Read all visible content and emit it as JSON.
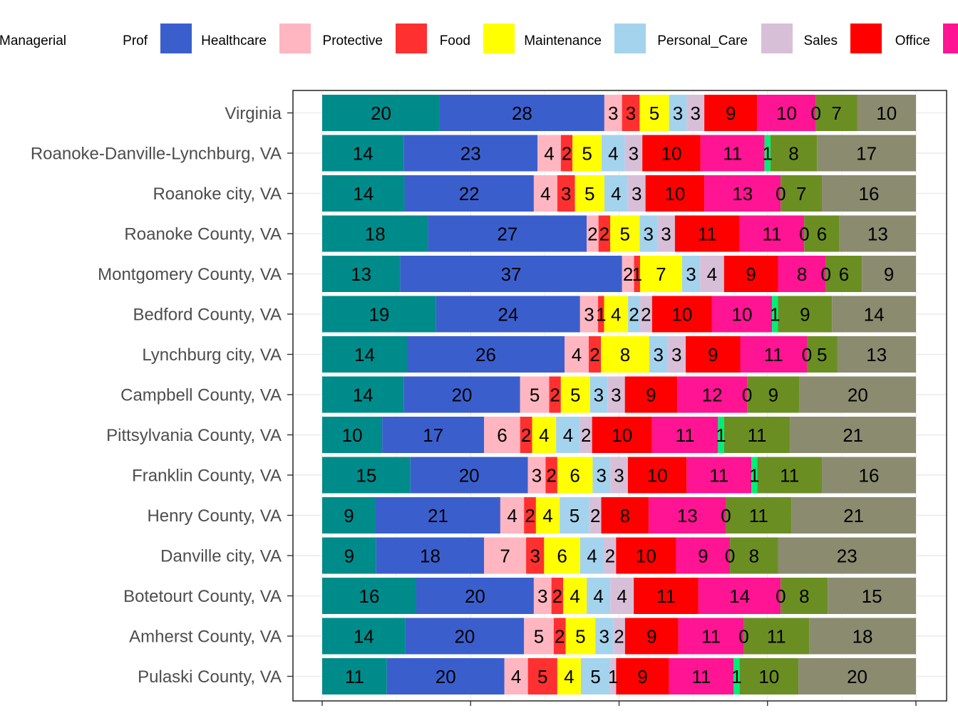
{
  "chart_data": {
    "type": "bar",
    "orientation": "horizontal",
    "stacked": true,
    "normalized": true,
    "grid": true,
    "legend_position": "top",
    "xlabel": "",
    "ylabel": "",
    "categories": [
      "Virginia",
      "Roanoke-Danville-Lynchburg, VA",
      "Roanoke city, VA",
      "Roanoke County, VA",
      "Montgomery County, VA",
      "Bedford County, VA",
      "Lynchburg city, VA",
      "Campbell County, VA",
      "Pittsylvania County, VA",
      "Franklin County, VA",
      "Henry County, VA",
      "Danville city, VA",
      "Botetourt County, VA",
      "Amherst County, VA",
      "Pulaski County, VA"
    ],
    "series": [
      {
        "name": "Managerial",
        "color": "#008B8B",
        "values": [
          20,
          14,
          14,
          18,
          13,
          19,
          14,
          14,
          10,
          15,
          9,
          9,
          16,
          14,
          11
        ]
      },
      {
        "name": "Prof",
        "color": "#3A5FCD",
        "values": [
          28,
          23,
          22,
          27,
          37,
          24,
          26,
          20,
          17,
          20,
          21,
          18,
          20,
          20,
          20
        ]
      },
      {
        "name": "Healthcare",
        "color": "#FFB6C1",
        "values": [
          3,
          4,
          4,
          2,
          2,
          3,
          4,
          5,
          6,
          3,
          4,
          7,
          3,
          5,
          4
        ]
      },
      {
        "name": "Protective",
        "color": "#FF3030",
        "values": [
          3,
          2,
          3,
          2,
          1,
          1,
          2,
          2,
          2,
          2,
          2,
          3,
          2,
          2,
          5
        ]
      },
      {
        "name": "Food",
        "color": "#FFFF00",
        "values": [
          5,
          5,
          5,
          5,
          7,
          4,
          8,
          5,
          4,
          6,
          4,
          6,
          4,
          5,
          4
        ]
      },
      {
        "name": "Maintenance",
        "color": "#A4D3EE",
        "values": [
          3,
          4,
          4,
          3,
          3,
          2,
          3,
          3,
          4,
          3,
          5,
          4,
          4,
          3,
          5
        ]
      },
      {
        "name": "Personal_Care",
        "color": "#D8BFD8",
        "values": [
          3,
          3,
          3,
          3,
          4,
          2,
          3,
          3,
          2,
          3,
          2,
          2,
          4,
          2,
          1
        ]
      },
      {
        "name": "Sales",
        "color": "#FF0000",
        "values": [
          9,
          10,
          10,
          11,
          9,
          10,
          9,
          9,
          10,
          10,
          8,
          10,
          11,
          9,
          9
        ]
      },
      {
        "name": "Office",
        "color": "#FF1493",
        "values": [
          10,
          11,
          13,
          11,
          8,
          10,
          11,
          12,
          11,
          11,
          13,
          9,
          14,
          11,
          11
        ]
      },
      {
        "name": "",
        "color": "#00EE76",
        "values": [
          0,
          1,
          0,
          0,
          0,
          1,
          0,
          0,
          1,
          1,
          0,
          0,
          0,
          0,
          1
        ]
      },
      {
        "name": "",
        "color": "#6B8E23",
        "values": [
          7,
          8,
          7,
          6,
          6,
          9,
          5,
          9,
          11,
          11,
          11,
          8,
          8,
          11,
          10
        ]
      },
      {
        "name": "",
        "color": "#8B8B70",
        "values": [
          10,
          17,
          16,
          13,
          9,
          14,
          13,
          20,
          21,
          16,
          21,
          23,
          15,
          18,
          20
        ]
      }
    ]
  }
}
